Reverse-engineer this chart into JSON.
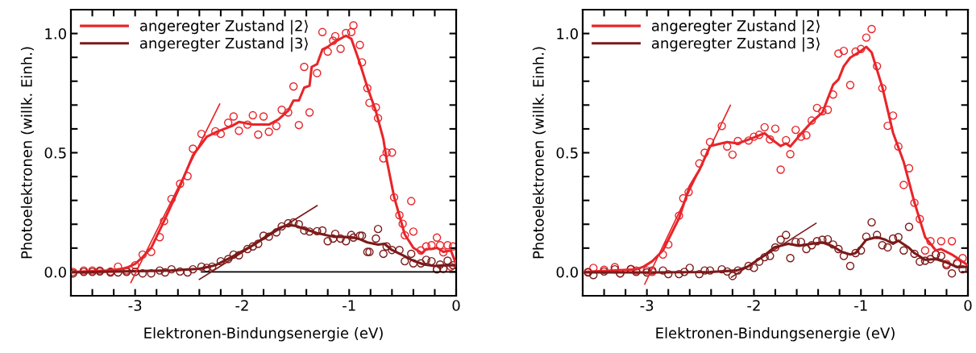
{
  "chart_data": [
    {
      "type": "line",
      "xlabel": "Elektronen-Bindungsenergie (eV)",
      "ylabel": "Photoelektronen (willk. Einh.)",
      "xlim": [
        -3.6,
        0
      ],
      "ylim": [
        -0.1,
        1.1
      ],
      "xticks": [
        -3,
        -2,
        -1,
        0,
        {
          "value": -3.4,
          "label": null
        },
        {
          "value": -3.2,
          "label": null
        },
        {
          "value": -2.8,
          "label": null
        },
        {
          "value": -2.6,
          "label": null
        },
        {
          "value": -2.4,
          "label": null
        },
        {
          "value": -2.2,
          "label": null
        },
        {
          "value": -1.8,
          "label": null
        },
        {
          "value": -1.6,
          "label": null
        },
        {
          "value": -1.4,
          "label": null
        },
        {
          "value": -1.2,
          "label": null
        },
        {
          "value": -0.8,
          "label": null
        },
        {
          "value": -0.6,
          "label": null
        },
        {
          "value": -0.4,
          "label": null
        },
        {
          "value": -0.2,
          "label": null
        }
      ],
      "yticks": [
        {
          "value": 0,
          "label": "0.0"
        },
        {
          "value": 0.5,
          "label": "0.5"
        },
        {
          "value": 1.0,
          "label": "1.0"
        },
        {
          "value": 0.1,
          "label": null
        },
        {
          "value": 0.2,
          "label": null
        },
        {
          "value": 0.3,
          "label": null
        },
        {
          "value": 0.4,
          "label": null
        },
        {
          "value": 0.6,
          "label": null
        },
        {
          "value": 0.7,
          "label": null
        },
        {
          "value": 0.8,
          "label": null
        },
        {
          "value": 0.9,
          "label": null
        }
      ],
      "legend": "top left",
      "series": [
        {
          "type": "scatter",
          "marker": "circle",
          "color": "#e8252a",
          "x": [
            -3.58,
            -3.48,
            -3.4,
            -3.33,
            -3.23,
            -3.16,
            -3.08,
            -3.0,
            -2.93,
            -2.85,
            -2.77,
            -2.73,
            -2.66,
            -2.58,
            -2.51,
            -2.46,
            -2.38,
            -2.25,
            -2.2,
            -2.13,
            -2.08,
            -2.03,
            -1.95,
            -1.9,
            -1.85,
            -1.8,
            -1.75,
            -1.68,
            -1.63,
            -1.57,
            -1.52,
            -1.47,
            -1.42,
            -1.37,
            -1.3,
            -1.25,
            -1.2,
            -1.15,
            -1.13,
            -1.08,
            -1.03,
            -0.98,
            -0.96,
            -0.9,
            -0.88,
            -0.83,
            -0.81,
            -0.75,
            -0.73,
            -0.68,
            -0.65,
            -0.6,
            -0.58,
            -0.53,
            -0.5,
            -0.48,
            -0.42,
            -0.4,
            -0.33,
            -0.28,
            -0.23,
            -0.18,
            -0.15,
            -0.12,
            -0.08,
            -0.03,
            -0.18,
            -0.05
          ],
          "values": [
            0.0,
            0.006,
            0.006,
            0.006,
            0.002,
            0.022,
            0.006,
            0.028,
            0.073,
            0.084,
            0.146,
            0.213,
            0.306,
            0.37,
            0.402,
            0.517,
            0.579,
            0.59,
            0.579,
            0.626,
            0.652,
            0.592,
            0.618,
            0.657,
            0.576,
            0.652,
            0.588,
            0.612,
            0.68,
            0.669,
            0.778,
            0.616,
            0.86,
            0.669,
            0.834,
            1.006,
            0.924,
            0.97,
            0.989,
            0.936,
            1.002,
            1.006,
            1.034,
            0.952,
            0.879,
            0.771,
            0.709,
            0.69,
            0.645,
            0.476,
            0.501,
            0.501,
            0.313,
            0.238,
            0.202,
            0.154,
            0.297,
            0.169,
            0.09,
            0.107,
            0.112,
            0.144,
            0.112,
            0.082,
            0.112,
            0.107,
            0.011,
            0.022
          ]
        },
        {
          "type": "scatter",
          "marker": "circle",
          "color": "#7b1a1a",
          "x": [
            -3.58,
            -3.48,
            -3.4,
            -3.33,
            -3.23,
            -3.16,
            -3.08,
            -3.0,
            -2.93,
            -2.85,
            -2.77,
            -2.72,
            -2.66,
            -2.58,
            -2.51,
            -2.46,
            -2.38,
            -2.33,
            -2.28,
            -2.2,
            -2.13,
            -2.08,
            -2.03,
            -1.95,
            -1.9,
            -1.85,
            -1.8,
            -1.75,
            -1.68,
            -1.63,
            -1.57,
            -1.52,
            -1.47,
            -1.42,
            -1.37,
            -1.3,
            -1.25,
            -1.2,
            -1.15,
            -1.13,
            -1.08,
            -1.03,
            -0.98,
            -0.96,
            -0.9,
            -0.88,
            -0.83,
            -0.81,
            -0.75,
            -0.73,
            -0.68,
            -0.65,
            -0.6,
            -0.53,
            -0.48,
            -0.42,
            -0.4,
            -0.33,
            -0.28,
            -0.23,
            -0.18,
            -0.15,
            -0.12,
            -0.08,
            -0.03
          ],
          "values": [
            -0.006,
            0,
            0,
            0.002,
            -0.002,
            -0.002,
            0,
            0,
            -0.006,
            -0.006,
            0.006,
            -0.002,
            0.011,
            0.002,
            -0.002,
            0.011,
            0.022,
            0.017,
            0.022,
            0.045,
            0.054,
            0.073,
            0.07,
            0.096,
            0.107,
            0.118,
            0.152,
            0.148,
            0.166,
            0.191,
            0.204,
            0.208,
            0.2,
            0.174,
            0.169,
            0.171,
            0.174,
            0.129,
            0.14,
            0.16,
            0.14,
            0.129,
            0.155,
            0.144,
            0.152,
            0.152,
            0.084,
            0.084,
            0.14,
            0.18,
            0.076,
            0.107,
            0.092,
            0.092,
            0.045,
            0.076,
            0.036,
            0.036,
            0.051,
            0.045,
            0.011,
            0.031,
            0.013,
            0.047,
            0.028
          ]
        },
        {
          "color": "#000000",
          "x": [
            -2.38,
            0
          ],
          "values": [
            0,
            0
          ]
        },
        {
          "name": "angeregter Zustand |2⟩",
          "color": "#e8252a",
          "x": [
            -3.6,
            -3.23,
            -3.08,
            -3.0,
            -2.93,
            -2.85,
            -2.73,
            -2.58,
            -2.46,
            -2.33,
            -2.23,
            -2.1,
            -2.03,
            -1.9,
            -1.75,
            -1.66,
            -1.57,
            -1.52,
            -1.47,
            -1.42,
            -1.37,
            -1.35,
            -1.3,
            -1.25,
            -1.2,
            -1.15,
            -1.03,
            -0.98,
            -0.9,
            -0.83,
            -0.75,
            -0.68,
            -0.65,
            -0.58,
            -0.48,
            -0.4,
            -0.32,
            -0.28,
            -0.23,
            -0.18,
            -0.12,
            -0.05,
            -0.02,
            0.0
          ],
          "values": [
            0.0,
            0.006,
            0.017,
            0.034,
            0.062,
            0.101,
            0.213,
            0.36,
            0.489,
            0.567,
            0.589,
            0.611,
            0.629,
            0.618,
            0.618,
            0.64,
            0.676,
            0.719,
            0.719,
            0.773,
            0.781,
            0.86,
            0.871,
            0.933,
            0.944,
            0.961,
            0.991,
            0.978,
            0.876,
            0.775,
            0.674,
            0.557,
            0.472,
            0.315,
            0.157,
            0.101,
            0.079,
            0.096,
            0.096,
            0.101,
            0.084,
            0.09,
            0.056,
            0.034
          ]
        },
        {
          "name": "angeregter Zustand |3⟩",
          "color": "#7b1a1a",
          "x": [
            -3.6,
            -2.66,
            -2.4,
            -2.25,
            -2.1,
            -1.9,
            -1.75,
            -1.65,
            -1.57,
            -1.5,
            -1.4,
            -1.3,
            -1.15,
            -0.98,
            -0.9,
            -0.83,
            -0.73,
            -0.67,
            -0.6,
            -0.5,
            -0.4,
            -0.3,
            -0.2,
            -0.1,
            0.0
          ],
          "values": [
            -0.002,
            0.006,
            0.013,
            0.028,
            0.062,
            0.112,
            0.157,
            0.185,
            0.197,
            0.193,
            0.178,
            0.163,
            0.148,
            0.146,
            0.137,
            0.124,
            0.115,
            0.118,
            0.092,
            0.07,
            0.047,
            0.031,
            0.025,
            0.028,
            0.028
          ]
        },
        {
          "color": "#e8252a",
          "x": [
            -3.04,
            -2.21
          ],
          "values": [
            -0.045,
            0.704
          ]
        },
        {
          "color": "#7b1a1a",
          "x": [
            -2.4,
            -1.3
          ],
          "values": [
            -0.031,
            0.278
          ]
        }
      ]
    },
    {
      "type": "line",
      "xlabel": "Elektronen-Bindungsenergie (eV)",
      "ylabel": "Photoelektronen (willk. Einh.)",
      "xlim": [
        -3.6,
        0
      ],
      "ylim": [
        -0.1,
        1.1
      ],
      "xticks": [
        -3,
        -2,
        -1,
        0,
        {
          "value": -3.4,
          "label": null
        },
        {
          "value": -3.2,
          "label": null
        },
        {
          "value": -2.8,
          "label": null
        },
        {
          "value": -2.6,
          "label": null
        },
        {
          "value": -2.4,
          "label": null
        },
        {
          "value": -2.2,
          "label": null
        },
        {
          "value": -1.8,
          "label": null
        },
        {
          "value": -1.6,
          "label": null
        },
        {
          "value": -1.4,
          "label": null
        },
        {
          "value": -1.2,
          "label": null
        },
        {
          "value": -0.8,
          "label": null
        },
        {
          "value": -0.6,
          "label": null
        },
        {
          "value": -0.4,
          "label": null
        },
        {
          "value": -0.2,
          "label": null
        }
      ],
      "yticks": [
        {
          "value": 0,
          "label": "0.0"
        },
        {
          "value": 0.5,
          "label": "0.5"
        },
        {
          "value": 1.0,
          "label": "1.0"
        },
        {
          "value": 0.1,
          "label": null
        },
        {
          "value": 0.2,
          "label": null
        },
        {
          "value": 0.3,
          "label": null
        },
        {
          "value": 0.4,
          "label": null
        },
        {
          "value": 0.6,
          "label": null
        },
        {
          "value": 0.7,
          "label": null
        },
        {
          "value": 0.8,
          "label": null
        },
        {
          "value": 0.9,
          "label": null
        }
      ],
      "legend": "top left",
      "series": [
        {
          "type": "scatter",
          "marker": "circle",
          "color": "#e8252a",
          "x": [
            -3.55,
            -3.5,
            -3.4,
            -3.3,
            -3.25,
            -3.15,
            -3.1,
            -3.0,
            -2.95,
            -2.85,
            -2.8,
            -2.7,
            -2.66,
            -2.61,
            -2.51,
            -2.46,
            -2.41,
            -2.3,
            -2.25,
            -2.2,
            -2.15,
            -2.05,
            -2.0,
            -1.95,
            -1.9,
            -1.85,
            -1.8,
            -1.75,
            -1.7,
            -1.66,
            -1.61,
            -1.56,
            -1.51,
            -1.46,
            -1.41,
            -1.36,
            -1.31,
            -1.26,
            -1.21,
            -1.16,
            -1.1,
            -1.05,
            -1.0,
            -0.95,
            -0.9,
            -0.85,
            -0.8,
            -0.75,
            -0.7,
            -0.65,
            -0.6,
            -0.55,
            -0.5,
            -0.45,
            -0.4,
            -0.35,
            -0.3,
            -0.25,
            -0.2,
            -0.15,
            -0.1,
            -0.05
          ],
          "values": [
            0.0,
            0.017,
            0.009,
            0.02,
            -0.006,
            0.013,
            0.006,
            0.006,
            0.0,
            0.073,
            0.115,
            0.236,
            0.309,
            0.335,
            0.455,
            0.5,
            0.545,
            0.612,
            0.526,
            0.492,
            0.549,
            0.551,
            0.567,
            0.575,
            0.607,
            0.556,
            0.601,
            0.429,
            0.553,
            0.494,
            0.596,
            0.567,
            0.573,
            0.635,
            0.688,
            0.674,
            0.68,
            0.744,
            0.916,
            0.927,
            0.784,
            0.924,
            0.935,
            0.983,
            1.019,
            0.863,
            0.771,
            0.613,
            0.656,
            0.526,
            0.365,
            0.435,
            0.29,
            0.222,
            0.09,
            0.129,
            0.073,
            0.129,
            0.034,
            0.129,
            0.034,
            0.058
          ]
        },
        {
          "type": "scatter",
          "marker": "circle",
          "color": "#7b1a1a",
          "x": [
            -3.55,
            -3.5,
            -3.4,
            -3.3,
            -3.25,
            -3.15,
            -3.1,
            -3.0,
            -2.95,
            -2.85,
            -2.8,
            -2.7,
            -2.65,
            -2.6,
            -2.51,
            -2.46,
            -2.41,
            -2.3,
            -2.25,
            -2.2,
            -2.15,
            -2.05,
            -2.0,
            -1.95,
            -1.9,
            -1.85,
            -1.8,
            -1.75,
            -1.7,
            -1.66,
            -1.61,
            -1.56,
            -1.51,
            -1.46,
            -1.41,
            -1.36,
            -1.31,
            -1.26,
            -1.21,
            -1.16,
            -1.1,
            -1.05,
            -1.0,
            -0.95,
            -0.9,
            -0.85,
            -0.8,
            -0.75,
            -0.7,
            -0.65,
            -0.6,
            -0.55,
            -0.5,
            -0.45,
            -0.4,
            -0.35,
            -0.3,
            -0.25,
            -0.2,
            -0.15,
            -0.1,
            -0.05
          ],
          "values": [
            -0.002,
            -0.013,
            0.002,
            0.011,
            -0.006,
            0.011,
            0.0,
            -0.002,
            0.006,
            0.006,
            -0.009,
            -0.009,
            0.0,
            0.017,
            -0.009,
            0.006,
            0.006,
            0.011,
            0.002,
            -0.017,
            0.006,
            0.025,
            0.017,
            0.043,
            0.062,
            0.067,
            0.103,
            0.135,
            0.155,
            0.058,
            0.126,
            0.126,
            0.096,
            0.112,
            0.129,
            0.135,
            0.137,
            0.115,
            0.096,
            0.067,
            0.025,
            0.079,
            0.09,
            0.148,
            0.208,
            0.155,
            0.112,
            0.103,
            0.14,
            0.146,
            0.09,
            0.189,
            0.076,
            0.043,
            0.047,
            0.054,
            0.073,
            0.067,
            0.028,
            -0.006,
            0.038,
            0.011
          ]
        },
        {
          "name": "angeregter Zustand |2⟩",
          "color": "#e8252a",
          "x": [
            -3.6,
            -3.1,
            -3.03,
            -2.95,
            -2.85,
            -2.7,
            -2.6,
            -2.51,
            -2.41,
            -2.25,
            -2.15,
            -2.0,
            -1.9,
            -1.85,
            -1.75,
            -1.7,
            -1.66,
            -1.56,
            -1.46,
            -1.36,
            -1.26,
            -1.21,
            -1.16,
            -1.1,
            -1.0,
            -0.95,
            -0.9,
            -0.8,
            -0.7,
            -0.6,
            -0.5,
            -0.4,
            -0.3,
            -0.25,
            -0.15,
            0.0
          ],
          "values": [
            0.0,
            0.011,
            0.022,
            0.045,
            0.09,
            0.225,
            0.36,
            0.427,
            0.528,
            0.545,
            0.539,
            0.564,
            0.582,
            0.562,
            0.528,
            0.539,
            0.526,
            0.579,
            0.629,
            0.669,
            0.785,
            0.807,
            0.863,
            0.899,
            0.927,
            0.944,
            0.921,
            0.775,
            0.584,
            0.461,
            0.292,
            0.146,
            0.09,
            0.096,
            0.073,
            0.028
          ]
        },
        {
          "name": "angeregter Zustand |3⟩",
          "color": "#7b1a1a",
          "x": [
            -3.6,
            -2.91,
            -2.41,
            -2.16,
            -2.06,
            -1.91,
            -1.81,
            -1.68,
            -1.58,
            -1.46,
            -1.36,
            -1.26,
            -1.18,
            -1.1,
            -1.05,
            -0.95,
            -0.85,
            -0.77,
            -0.7,
            -0.65,
            -0.55,
            -0.5,
            -0.4,
            -0.3,
            -0.2,
            -0.1,
            0.0
          ],
          "values": [
            -0.002,
            -0.002,
            0.0,
            0.006,
            0.022,
            0.067,
            0.103,
            0.118,
            0.11,
            0.118,
            0.124,
            0.107,
            0.084,
            0.073,
            0.079,
            0.135,
            0.146,
            0.135,
            0.118,
            0.131,
            0.101,
            0.079,
            0.051,
            0.054,
            0.04,
            0.02,
            0.022
          ]
        },
        {
          "color": "#e8252a",
          "x": [
            -3.02,
            -2.22
          ],
          "values": [
            -0.051,
            0.699
          ]
        },
        {
          "color": "#7b1a1a",
          "x": [
            -2.21,
            -1.42
          ],
          "values": [
            -0.022,
            0.204
          ]
        }
      ]
    }
  ]
}
